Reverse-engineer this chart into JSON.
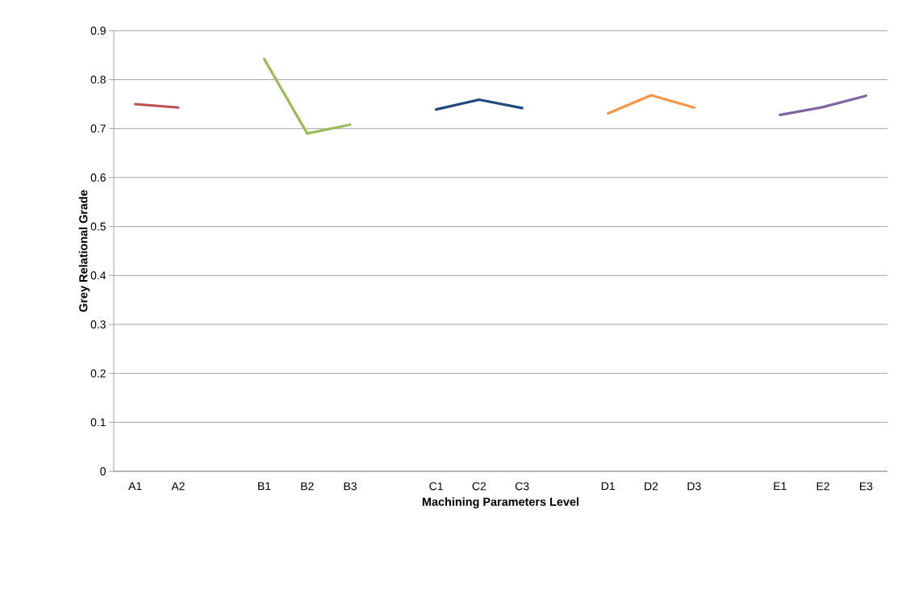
{
  "chart_data": {
    "type": "line",
    "xlabel": "Machining Parameters Level",
    "ylabel": "Grey Relational Grade",
    "categories": [
      "A1",
      "A2",
      null,
      "B1",
      "B2",
      "B3",
      null,
      "C1",
      "C2",
      "C3",
      null,
      "D1",
      "D2",
      "D3",
      null,
      "E1",
      "E2",
      "E3"
    ],
    "series": [
      {
        "color": "#c0504d",
        "values": [
          0.75,
          0.743,
          null,
          null,
          null,
          null,
          null,
          null,
          null,
          null,
          null,
          null,
          null,
          null,
          null,
          null,
          null,
          null
        ]
      },
      {
        "color": "#9bbb59",
        "values": [
          null,
          null,
          null,
          0.842,
          0.69,
          0.708,
          null,
          null,
          null,
          null,
          null,
          null,
          null,
          null,
          null,
          null,
          null,
          null
        ]
      },
      {
        "color": "#1f497d",
        "values": [
          null,
          null,
          null,
          null,
          null,
          null,
          null,
          0.739,
          0.759,
          0.742,
          null,
          null,
          null,
          null,
          null,
          null,
          null,
          null
        ]
      },
      {
        "color": "#f79646",
        "values": [
          null,
          null,
          null,
          null,
          null,
          null,
          null,
          null,
          null,
          null,
          null,
          0.731,
          0.768,
          0.743,
          null,
          null,
          null,
          null
        ]
      },
      {
        "color": "#8064a2",
        "values": [
          null,
          null,
          null,
          null,
          null,
          null,
          null,
          null,
          null,
          null,
          null,
          null,
          null,
          null,
          null,
          0.728,
          0.744,
          0.767
        ]
      }
    ],
    "ylim": [
      0,
      0.9
    ],
    "yticks": [
      0,
      0.1,
      0.2,
      0.3,
      0.4,
      0.5,
      0.6,
      0.7,
      0.8,
      0.9
    ],
    "grid": "y",
    "legend": false,
    "marker": "none",
    "line_style": "solid"
  }
}
